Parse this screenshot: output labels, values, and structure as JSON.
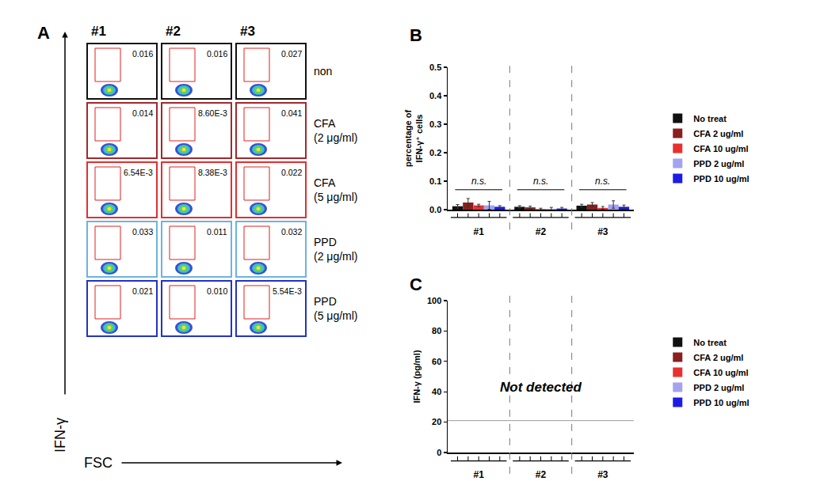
{
  "chart_data": [
    {
      "panel": "A",
      "type": "flow",
      "x_label": "FSC",
      "y_label": "IFN-γ",
      "columns": [
        "#1",
        "#2",
        "#3"
      ],
      "rows": [
        {
          "label": [
            "non"
          ],
          "color": "#111111",
          "values": [
            0.016,
            0.016,
            0.027
          ]
        },
        {
          "label": [
            "CFA",
            "(2 μg/ml)"
          ],
          "color": "#a3282b",
          "values": [
            0.014,
            0.0086,
            0.041
          ],
          "value_labels": [
            "0.014",
            "8.60E-3",
            "0.041"
          ]
        },
        {
          "label": [
            "CFA",
            "(5 μg/ml)"
          ],
          "color": "#e0302e",
          "values": [
            0.00654,
            0.00838,
            0.022
          ],
          "value_labels": [
            "6.54E-3",
            "8.38E-3",
            "0.022"
          ]
        },
        {
          "label": [
            "PPD",
            "(2 μg/ml)"
          ],
          "color": "#6cb4dc",
          "values": [
            0.033,
            0.011,
            0.032
          ]
        },
        {
          "label": [
            "PPD",
            "(5 μg/ml)"
          ],
          "color": "#2233c4",
          "values": [
            0.021,
            0.01,
            0.00554
          ],
          "value_labels": [
            "0.021",
            "0.010",
            "5.54E-3"
          ]
        }
      ]
    },
    {
      "panel": "B",
      "type": "bar",
      "categories": [
        "#1",
        "#2",
        "#3"
      ],
      "y_label": [
        "percentage of",
        "IFN-γ⁺ cells"
      ],
      "ylim": [
        0,
        0.5
      ],
      "yticks": [
        {
          "value": 0,
          "label": "0.0"
        },
        {
          "value": 0.1,
          "label": "0.1"
        },
        {
          "value": 0.2,
          "label": "0.2"
        },
        {
          "value": 0.3,
          "label": "0.3"
        },
        {
          "value": 0.4,
          "label": "0.4"
        },
        {
          "value": 0.5,
          "label": "0.5"
        }
      ],
      "grid": false,
      "legend": "right",
      "annotations": [
        "n.s.",
        "n.s.",
        "n.s."
      ],
      "series": [
        {
          "name": "No treat",
          "color": "#111111",
          "values": [
            0.012,
            0.01,
            0.014
          ],
          "errors": [
            0.006,
            0.004,
            0.005
          ]
        },
        {
          "name": "CFA 2 ug/ml",
          "color": "#8b1e1e",
          "values": [
            0.025,
            0.008,
            0.018
          ],
          "errors": [
            0.014,
            0.004,
            0.007
          ]
        },
        {
          "name": "CFA 10 ug/ml",
          "color": "#e8312f",
          "values": [
            0.015,
            0.002,
            0.006
          ],
          "errors": [
            0.004,
            0.003,
            0.005
          ]
        },
        {
          "name": "PPD 2 ug/ml",
          "color": "#a3a3f0",
          "values": [
            0.015,
            0.003,
            0.018
          ],
          "errors": [
            0.014,
            0.005,
            0.013
          ]
        },
        {
          "name": "PPD 10 ug/ml",
          "color": "#1c1ce6",
          "values": [
            0.01,
            0.004,
            0.01
          ],
          "errors": [
            0.004,
            0.004,
            0.006
          ]
        }
      ]
    },
    {
      "panel": "C",
      "type": "bar",
      "categories": [
        "#1",
        "#2",
        "#3"
      ],
      "y_label": [
        "IFN-γ (pg/ml)"
      ],
      "ylim": [
        0,
        100
      ],
      "yticks": [
        0,
        20,
        40,
        60,
        80,
        100
      ],
      "grid": false,
      "legend": "right",
      "annotation": "Not detected",
      "limit_line": 21,
      "series": [
        {
          "name": "No treat",
          "color": "#111111",
          "values": [
            null,
            null,
            null
          ]
        },
        {
          "name": "CFA 2 ug/ml",
          "color": "#8b1e1e",
          "values": [
            null,
            null,
            null
          ]
        },
        {
          "name": "CFA 10 ug/ml",
          "color": "#e8312f",
          "values": [
            null,
            null,
            null
          ]
        },
        {
          "name": "PPD 2 ug/ml",
          "color": "#a3a3f0",
          "values": [
            null,
            null,
            null
          ]
        },
        {
          "name": "PPD 10 ug/ml",
          "color": "#1c1ce6",
          "values": [
            null,
            null,
            null
          ]
        }
      ]
    }
  ]
}
